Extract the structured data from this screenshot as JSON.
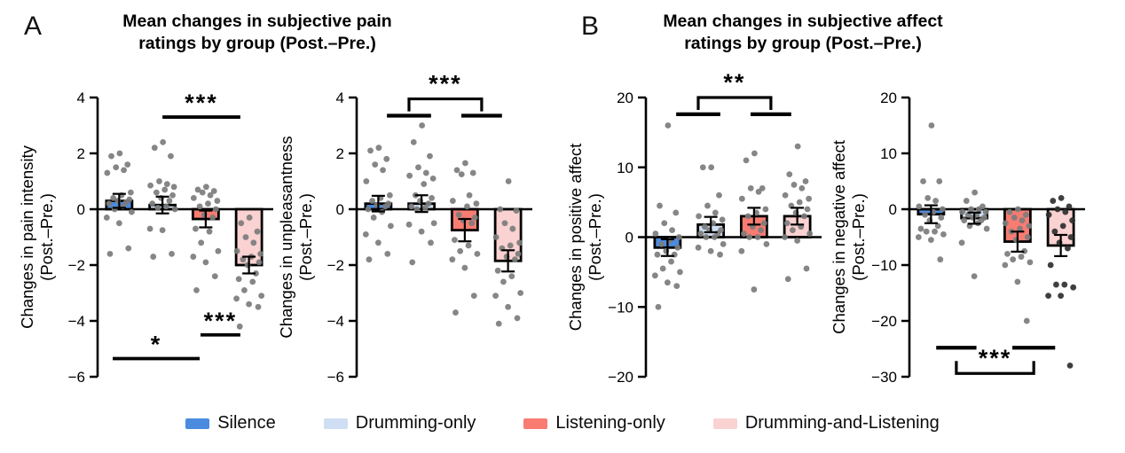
{
  "panels": [
    {
      "label": "A",
      "title_lines": [
        "Mean changes in subjective pain",
        "ratings by group (Post.–Pre.)"
      ]
    },
    {
      "label": "B",
      "title_lines": [
        "Mean changes in subjective affect",
        "ratings by group (Post.–Pre.)"
      ]
    }
  ],
  "legend": {
    "items": [
      {
        "label": "Silence",
        "color": "#4a8be0"
      },
      {
        "label": "Drumming-only",
        "color": "#cfdef2"
      },
      {
        "label": "Listening-only",
        "color": "#f87c72"
      },
      {
        "label": "Drumming-and-Listening",
        "color": "#fad2d1"
      }
    ]
  },
  "chart_data": [
    {
      "id": "pain-intensity",
      "panel": "A",
      "type": "bar",
      "overlay": "scatter-points",
      "ylabel_lines": [
        "Changes in pain intensity",
        "(Post.–Pre.)"
      ],
      "ylim": [
        -6,
        4
      ],
      "yticks": [
        4,
        2,
        0,
        -2,
        -4,
        -6
      ],
      "ytick_labels": [
        "4",
        "2",
        "0",
        "−2",
        "−4",
        "−6"
      ],
      "categories": [
        "Silence",
        "Drumming-only",
        "Listening-only",
        "Drumming-and-Listening"
      ],
      "bar_values": [
        0.3,
        0.15,
        -0.35,
        -2.0
      ],
      "bar_errors": [
        0.25,
        0.3,
        0.3,
        0.3
      ],
      "bar_colors": [
        "#4a8be0",
        "#cfdef2",
        "#f87c72",
        "#fad2d1"
      ],
      "point_colors": [
        "#7c7c7c",
        "#7c7c7c",
        "#7c7c7c",
        "#7c7c7c"
      ],
      "points": [
        [
          2.0,
          1.9,
          1.6,
          1.5,
          1.4,
          1.3,
          0.6,
          0.5,
          0.4,
          0.35,
          0.3,
          0.25,
          0.2,
          0.1,
          0.0,
          -0.1,
          -0.3,
          -0.5,
          -1.4,
          -1.6
        ],
        [
          2.4,
          2.2,
          1.9,
          1.0,
          0.9,
          0.85,
          0.8,
          0.7,
          0.6,
          0.5,
          0.4,
          0.3,
          0.2,
          0.1,
          0.05,
          0.0,
          -0.7,
          -0.75,
          -1.6,
          -1.7
        ],
        [
          0.8,
          0.7,
          0.65,
          0.6,
          0.5,
          0.4,
          0.3,
          0.2,
          0.1,
          0.0,
          -0.2,
          -0.3,
          -0.7,
          -0.8,
          -1.2,
          -1.5,
          -1.7,
          -1.9,
          -2.4,
          -2.9
        ],
        [
          -0.3,
          -0.5,
          -0.8,
          -1.0,
          -1.2,
          -1.5,
          -1.6,
          -1.7,
          -1.8,
          -1.9,
          -2.0,
          -2.3,
          -2.5,
          -2.6,
          -2.9,
          -3.1,
          -3.2,
          -3.4,
          -3.5,
          -4.2
        ]
      ],
      "annotations": [
        {
          "type": "line",
          "span": [
            1.5,
            3.3
          ],
          "y": 3.3,
          "label": "***"
        },
        {
          "type": "line",
          "span": [
            2.38,
            3.3
          ],
          "y": -4.5,
          "label": "***"
        },
        {
          "type": "line",
          "span": [
            0.35,
            2.36
          ],
          "y": -5.35,
          "label": "*"
        }
      ]
    },
    {
      "id": "unpleasantness",
      "panel": "A",
      "type": "bar",
      "overlay": "scatter-points",
      "ylabel_lines": [
        "Changes in unpleasantness",
        "(Post.–Pre.)"
      ],
      "ylim": [
        -6,
        4
      ],
      "yticks": [
        4,
        2,
        0,
        -2,
        -4,
        -6
      ],
      "ytick_labels": [
        "4",
        "2",
        "0",
        "−2",
        "−4",
        "−6"
      ],
      "categories": [
        "Silence",
        "Drumming-only",
        "Listening-only",
        "Drumming-and-Listening"
      ],
      "bar_values": [
        0.2,
        0.2,
        -0.75,
        -1.85
      ],
      "bar_errors": [
        0.28,
        0.3,
        0.4,
        0.38
      ],
      "bar_colors": [
        "#4a8be0",
        "#cfdef2",
        "#f87c72",
        "#fad2d1"
      ],
      "point_colors": [
        "#7c7c7c",
        "#7c7c7c",
        "#7c7c7c",
        "#7c7c7c"
      ],
      "points": [
        [
          2.2,
          2.1,
          1.8,
          1.6,
          1.4,
          1.0,
          0.5,
          0.4,
          0.3,
          0.2,
          0.15,
          0.1,
          0.0,
          -0.1,
          -0.3,
          -0.6,
          -0.9,
          -1.2,
          -1.6,
          -1.8
        ],
        [
          3.0,
          2.4,
          1.9,
          1.5,
          1.3,
          1.2,
          1.1,
          0.9,
          0.5,
          0.4,
          0.3,
          0.2,
          0.1,
          0.05,
          0.0,
          -0.5,
          -0.55,
          -0.8,
          -1.2,
          -1.9
        ],
        [
          1.65,
          1.4,
          1.3,
          1.25,
          0.5,
          0.3,
          0.2,
          0.1,
          -0.2,
          -0.3,
          -0.4,
          -0.5,
          -1.1,
          -1.3,
          -1.5,
          -1.6,
          -1.8,
          -2.1,
          -3.1,
          -3.7
        ],
        [
          1.0,
          0.0,
          -0.05,
          -0.5,
          -0.7,
          -1.0,
          -1.2,
          -1.3,
          -1.4,
          -1.6,
          -1.7,
          -1.8,
          -2.2,
          -2.4,
          -2.6,
          -3.0,
          -3.1,
          -3.5,
          -3.9,
          -4.1
        ]
      ],
      "annotations": [
        {
          "type": "bracket-group",
          "dir": "down",
          "lineA": [
            0.7,
            1.72
          ],
          "lineB": [
            2.42,
            3.36
          ],
          "line_y": 3.35,
          "bracket_y": 3.95,
          "label": "***"
        }
      ]
    },
    {
      "id": "positive-affect",
      "panel": "B",
      "type": "bar",
      "overlay": "scatter-points",
      "ylabel_lines": [
        "Changes in positive affect",
        "(Post.–Pre.)"
      ],
      "ylim": [
        -20,
        20
      ],
      "yticks": [
        20,
        10,
        0,
        -10,
        -20
      ],
      "ytick_labels": [
        "20",
        "10",
        "0",
        "−10",
        "−20"
      ],
      "categories": [
        "Silence",
        "Drumming-only",
        "Listening-only",
        "Drumming-and-Listening"
      ],
      "bar_values": [
        -1.5,
        1.8,
        3.0,
        3.0
      ],
      "bar_errors": [
        1.2,
        1.1,
        1.2,
        1.2
      ],
      "bar_colors": [
        "#4a8be0",
        "#cfdef2",
        "#f87c72",
        "#fad2d1"
      ],
      "point_colors": [
        "#7c7c7c",
        "#7c7c7c",
        "#7c7c7c",
        "#7c7c7c"
      ],
      "points": [
        [
          16,
          4.5,
          3.5,
          2,
          1,
          0.5,
          0,
          -0.5,
          -1,
          -1.5,
          -2,
          -2.5,
          -2.5,
          -3.5,
          -4.5,
          -5,
          -5.5,
          -6.5,
          -7,
          -10
        ],
        [
          10,
          10,
          6,
          4.5,
          3.5,
          3,
          2.5,
          2,
          1.5,
          1,
          1,
          0.5,
          0.5,
          0,
          0,
          -1,
          -1.5,
          -2,
          -2.5
        ],
        [
          12,
          11,
          7,
          7,
          6.5,
          5.5,
          4,
          3.5,
          3,
          2,
          1.5,
          1,
          0.5,
          0,
          0,
          -1,
          -2,
          -7.5
        ],
        [
          13,
          9,
          8,
          7.5,
          7,
          6,
          5.5,
          5,
          4.5,
          4,
          3.5,
          3,
          2,
          1.5,
          1,
          0.5,
          0,
          -0.5,
          -4.5,
          -6
        ]
      ],
      "annotations": [
        {
          "type": "bracket-group",
          "dir": "down",
          "lineA": [
            0.7,
            1.72
          ],
          "lineB": [
            2.42,
            3.36
          ],
          "line_y": 17.6,
          "bracket_y": 20.0,
          "label": "**"
        }
      ]
    },
    {
      "id": "negative-affect",
      "panel": "B",
      "type": "bar",
      "overlay": "scatter-points",
      "ylabel_lines": [
        "Changes in negative affect",
        "(Post.–Pre.)"
      ],
      "ylim": [
        -30,
        20
      ],
      "yticks": [
        20,
        10,
        0,
        -10,
        -20,
        -30
      ],
      "ytick_labels": [
        "20",
        "10",
        "0",
        "−10",
        "−20",
        "−30"
      ],
      "categories": [
        "Silence",
        "Drumming-only",
        "Listening-only",
        "Drumming-and-Listening"
      ],
      "bar_values": [
        -0.9,
        -1.6,
        -5.8,
        -6.5
      ],
      "bar_errors": [
        1.6,
        1.0,
        1.8,
        1.9
      ],
      "bar_colors": [
        "#4a8be0",
        "#cfdef2",
        "#f87c72",
        "#fad2d1"
      ],
      "point_colors": [
        "#7c7c7c",
        "#7c7c7c",
        "#7c7c7c",
        "#2f2f2f"
      ],
      "points": [
        [
          15,
          5,
          5,
          2,
          1.5,
          0.5,
          0,
          -0.5,
          -1,
          -1.5,
          -2,
          -3,
          -3.5,
          -4,
          -4,
          -4.5,
          -5,
          -5.5,
          -9
        ],
        [
          3,
          1.5,
          0.5,
          0,
          0,
          -0.5,
          -0.5,
          -1,
          -1,
          -1.5,
          -1.5,
          -2,
          -2,
          -2.5,
          -3,
          -3.5,
          -6,
          -12
        ],
        [
          0,
          -0.5,
          -1,
          -1.5,
          -2,
          -2.5,
          -3,
          -3.5,
          -4,
          -5,
          -5.5,
          -7.5,
          -8,
          -8.5,
          -9,
          -9.5,
          -10,
          -13,
          -20
        ],
        [
          2,
          1.5,
          0.5,
          0,
          -0.5,
          -1,
          -2,
          -3,
          -4,
          -5,
          -6,
          -7,
          -10,
          -13.5,
          -13.5,
          -14,
          -15.5,
          -15.5,
          -28
        ]
      ],
      "annotations": [
        {
          "type": "bracket-group",
          "dir": "up",
          "lineA": [
            0.62,
            1.55
          ],
          "lineB": [
            2.38,
            3.37
          ],
          "line_y": -24.8,
          "bracket_y": -29.4,
          "label": "***"
        }
      ]
    }
  ]
}
